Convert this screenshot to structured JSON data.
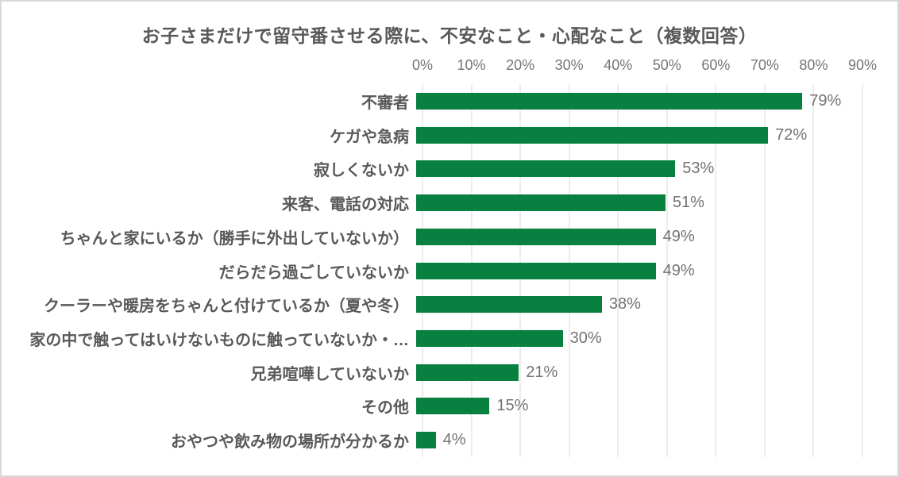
{
  "title": "お子さまだけで留守番させる際に、不安なこと・心配なこと（複数回答）",
  "colors": {
    "bar": "#08803f",
    "title_text": "#595959",
    "category_text": "#595959",
    "value_text": "#737373",
    "axis_text": "#757575",
    "gridline": "#d9d9d9",
    "frame_border": "#d9d9d9",
    "background": "#ffffff"
  },
  "chart_data": {
    "type": "bar",
    "orientation": "horizontal",
    "title": "お子さまだけで留守番させる際に、不安なこと・心配なこと（複数回答）",
    "xlabel": "",
    "ylabel": "",
    "grid": true,
    "legend": false,
    "x_axis": {
      "min": 0,
      "max": 90,
      "tick_step": 10,
      "ticks": [
        "0%",
        "10%",
        "20%",
        "30%",
        "40%",
        "50%",
        "60%",
        "70%",
        "80%",
        "90%"
      ]
    },
    "categories": [
      "不審者",
      "ケガや急病",
      "寂しくないか",
      "来客、電話の対応",
      "ちゃんと家にいるか（勝手に外出していないか）",
      "だらだら過ごしていないか",
      "クーラーや暖房をちゃんと付けているか（夏や冬）",
      "家の中で触ってはいけないものに触っていないか・…",
      "兄弟喧嘩していないか",
      "その他",
      "おやつや飲み物の場所が分かるか"
    ],
    "values": [
      79,
      72,
      53,
      51,
      49,
      49,
      38,
      30,
      21,
      15,
      4
    ],
    "value_labels": [
      "79%",
      "72%",
      "53%",
      "51%",
      "49%",
      "49%",
      "38%",
      "30%",
      "21%",
      "15%",
      "4%"
    ]
  }
}
